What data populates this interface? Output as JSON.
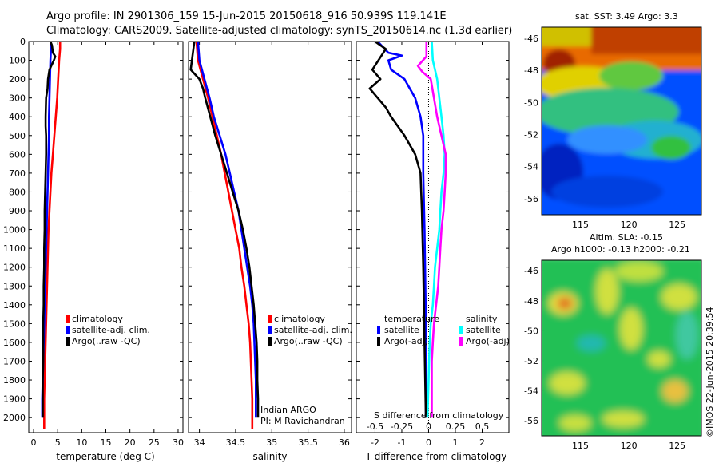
{
  "title": {
    "line1": "Argo profile: IN 2901306_159 15-Jun-2015 20150618_916 50.939S 119.141E",
    "line2": "Climatology: CARS2009. Satellite-adjusted climatology: synTS_20150614.nc (1.3d earlier)"
  },
  "colors": {
    "climatology": "#ff0000",
    "satellite_adj": "#0000ff",
    "argo": "#000000",
    "satellite_salinity": "#00ffff",
    "argo_salinity": "#ff00ff"
  },
  "legend": {
    "climatology": "climatology",
    "satellite_adj": "satellite-adj. clim.",
    "argo": "Argo(..raw -QC)",
    "temperature_head": "temperature",
    "salinity_head": "salinity",
    "satellite": "satellite",
    "argo_adj": "Argo(-adj)"
  },
  "annotations": {
    "indian_argo": "Indian ARGO",
    "pi": "PI: M Ravichandran",
    "s_diff_label": "S difference from climatology",
    "maps_top_label": "sat. SST: 3.49 Argo: 3.3",
    "altim_line1": "Altim. SLA: -0.15",
    "altim_line2": "Argo h1000: -0.13 h2000: -0.21",
    "imos_stamp": "©IMOS 22-Jun-2015 20:39:54"
  },
  "chart_data": [
    {
      "type": "line",
      "panel": "temperature",
      "xlabel": "temperature (deg C)",
      "ylabel": "",
      "xlim": [
        -1,
        31
      ],
      "ylim": [
        2080,
        0
      ],
      "y_inverted": true,
      "xticks": [
        0,
        5,
        10,
        15,
        20,
        25,
        30
      ],
      "yticks": [
        0,
        100,
        200,
        300,
        400,
        500,
        600,
        700,
        800,
        900,
        1000,
        1100,
        1200,
        1300,
        1400,
        1500,
        1600,
        1700,
        1800,
        1900,
        2000
      ],
      "series": [
        {
          "name": "climatology",
          "color": "#ff0000",
          "points": [
            [
              5.5,
              0
            ],
            [
              5.5,
              40
            ],
            [
              5.3,
              100
            ],
            [
              5.1,
              200
            ],
            [
              4.9,
              300
            ],
            [
              4.6,
              400
            ],
            [
              4.3,
              500
            ],
            [
              4.0,
              600
            ],
            [
              3.7,
              700
            ],
            [
              3.5,
              800
            ],
            [
              3.3,
              900
            ],
            [
              3.1,
              1000
            ],
            [
              3.0,
              1100
            ],
            [
              2.9,
              1200
            ],
            [
              2.8,
              1300
            ],
            [
              2.7,
              1400
            ],
            [
              2.6,
              1500
            ],
            [
              2.5,
              1600
            ],
            [
              2.4,
              1700
            ],
            [
              2.3,
              1800
            ],
            [
              2.2,
              1900
            ],
            [
              2.2,
              2000
            ],
            [
              2.2,
              2060
            ]
          ]
        },
        {
          "name": "satellite-adj. clim.",
          "color": "#0000ff",
          "points": [
            [
              3.6,
              0
            ],
            [
              3.6,
              50
            ],
            [
              3.5,
              100
            ],
            [
              3.4,
              200
            ],
            [
              3.3,
              300
            ],
            [
              3.2,
              400
            ],
            [
              3.2,
              500
            ],
            [
              3.1,
              600
            ],
            [
              3.0,
              700
            ],
            [
              2.9,
              800
            ],
            [
              2.8,
              900
            ],
            [
              2.7,
              1000
            ],
            [
              2.6,
              1100
            ],
            [
              2.5,
              1200
            ],
            [
              2.4,
              1300
            ],
            [
              2.3,
              1400
            ],
            [
              2.2,
              1500
            ],
            [
              2.1,
              1600
            ],
            [
              2.0,
              1700
            ],
            [
              1.9,
              1800
            ],
            [
              1.8,
              1900
            ],
            [
              1.8,
              2000
            ]
          ]
        },
        {
          "name": "Argo(..raw -QC)",
          "color": "#000000",
          "points": [
            [
              3.5,
              0
            ],
            [
              3.8,
              20
            ],
            [
              4.0,
              60
            ],
            [
              4.5,
              80
            ],
            [
              4.2,
              100
            ],
            [
              3.3,
              150
            ],
            [
              3.0,
              200
            ],
            [
              2.9,
              250
            ],
            [
              2.6,
              300
            ],
            [
              2.5,
              400
            ],
            [
              2.5,
              450
            ],
            [
              2.6,
              500
            ],
            [
              2.6,
              600
            ],
            [
              2.5,
              700
            ],
            [
              2.4,
              800
            ],
            [
              2.3,
              900
            ],
            [
              2.3,
              1000
            ],
            [
              2.2,
              1100
            ],
            [
              2.2,
              1200
            ],
            [
              2.1,
              1300
            ],
            [
              2.1,
              1400
            ],
            [
              2.0,
              1500
            ],
            [
              2.0,
              1600
            ],
            [
              2.0,
              1700
            ],
            [
              1.9,
              1800
            ],
            [
              1.9,
              1900
            ],
            [
              1.9,
              2000
            ]
          ]
        }
      ]
    },
    {
      "type": "line",
      "panel": "salinity",
      "xlabel": "salinity",
      "ylabel": "",
      "xlim": [
        33.85,
        36.1
      ],
      "ylim": [
        2080,
        0
      ],
      "y_inverted": true,
      "xticks": [
        34,
        34.5,
        35,
        35.5,
        36
      ],
      "xticklabels": [
        "34",
        "34.5",
        "35",
        "35.5",
        "36"
      ],
      "series": [
        {
          "name": "climatology",
          "color": "#ff0000",
          "points": [
            [
              33.96,
              0
            ],
            [
              33.98,
              100
            ],
            [
              34.05,
              200
            ],
            [
              34.12,
              300
            ],
            [
              34.18,
              400
            ],
            [
              34.24,
              500
            ],
            [
              34.3,
              600
            ],
            [
              34.35,
              700
            ],
            [
              34.4,
              800
            ],
            [
              34.45,
              900
            ],
            [
              34.5,
              1000
            ],
            [
              34.55,
              1100
            ],
            [
              34.58,
              1200
            ],
            [
              34.62,
              1300
            ],
            [
              34.65,
              1400
            ],
            [
              34.68,
              1500
            ],
            [
              34.7,
              1600
            ],
            [
              34.71,
              1700
            ],
            [
              34.72,
              1800
            ],
            [
              34.73,
              1900
            ],
            [
              34.73,
              2000
            ],
            [
              34.73,
              2060
            ]
          ]
        },
        {
          "name": "satellite-adj. clim.",
          "color": "#0000ff",
          "points": [
            [
              33.98,
              0
            ],
            [
              34.0,
              100
            ],
            [
              34.07,
              200
            ],
            [
              34.14,
              300
            ],
            [
              34.2,
              400
            ],
            [
              34.28,
              500
            ],
            [
              34.36,
              600
            ],
            [
              34.42,
              700
            ],
            [
              34.48,
              800
            ],
            [
              34.54,
              900
            ],
            [
              34.58,
              1000
            ],
            [
              34.62,
              1100
            ],
            [
              34.66,
              1200
            ],
            [
              34.7,
              1300
            ],
            [
              34.73,
              1400
            ],
            [
              34.75,
              1500
            ],
            [
              34.76,
              1600
            ],
            [
              34.77,
              1700
            ],
            [
              34.78,
              1800
            ],
            [
              34.78,
              1900
            ],
            [
              34.78,
              2000
            ]
          ]
        },
        {
          "name": "Argo(..raw -QC)",
          "color": "#000000",
          "points": [
            [
              33.93,
              0
            ],
            [
              33.88,
              150
            ],
            [
              34.0,
              200
            ],
            [
              34.05,
              250
            ],
            [
              34.08,
              300
            ],
            [
              34.15,
              400
            ],
            [
              34.22,
              500
            ],
            [
              34.3,
              600
            ],
            [
              34.38,
              700
            ],
            [
              34.46,
              800
            ],
            [
              34.54,
              900
            ],
            [
              34.6,
              1000
            ],
            [
              34.65,
              1100
            ],
            [
              34.69,
              1200
            ],
            [
              34.72,
              1300
            ],
            [
              34.75,
              1400
            ],
            [
              34.77,
              1500
            ],
            [
              34.79,
              1600
            ],
            [
              34.8,
              1700
            ],
            [
              34.8,
              1800
            ],
            [
              34.81,
              1900
            ],
            [
              34.81,
              2000
            ]
          ]
        }
      ]
    },
    {
      "type": "line",
      "panel": "difference",
      "xlabel": "T difference from climatology",
      "ylabel": "",
      "xlim": [
        -2.7,
        3.0
      ],
      "ylim": [
        2080,
        0
      ],
      "y_inverted": true,
      "xticks": [
        -2,
        -1,
        0,
        1,
        2
      ],
      "secondary_x_label": "S difference from climatology",
      "secondary_xticks": [
        -0.5,
        -0.25,
        0,
        0.25,
        0.5
      ],
      "secondary_xticklabels": [
        "-0.5",
        "-0.25",
        "0",
        "0.25",
        "0.5"
      ],
      "series": [
        {
          "name": "temperature satellite",
          "color": "#0000ff",
          "points": [
            [
              -1.9,
              0
            ],
            [
              -1.5,
              60
            ],
            [
              -1.0,
              75
            ],
            [
              -1.5,
              100
            ],
            [
              -1.4,
              150
            ],
            [
              -0.9,
              200
            ],
            [
              -0.5,
              300
            ],
            [
              -0.3,
              400
            ],
            [
              -0.2,
              500
            ],
            [
              -0.2,
              700
            ],
            [
              -0.15,
              1000
            ],
            [
              -0.1,
              1500
            ],
            [
              -0.1,
              2000
            ]
          ]
        },
        {
          "name": "temperature Argo(-adj)",
          "color": "#000000",
          "points": [
            [
              -2.0,
              0
            ],
            [
              -1.6,
              40
            ],
            [
              -2.1,
              150
            ],
            [
              -1.8,
              200
            ],
            [
              -2.2,
              250
            ],
            [
              -1.9,
              300
            ],
            [
              -1.6,
              350
            ],
            [
              -1.4,
              400
            ],
            [
              -0.9,
              500
            ],
            [
              -0.5,
              600
            ],
            [
              -0.3,
              700
            ],
            [
              -0.25,
              900
            ],
            [
              -0.2,
              1200
            ],
            [
              -0.15,
              1600
            ],
            [
              -0.1,
              2000
            ]
          ]
        },
        {
          "name": "salinity satellite",
          "color": "#00ffff",
          "points": [
            [
              0.03,
              0
            ],
            [
              0.04,
              100
            ],
            [
              0.08,
              200
            ],
            [
              0.1,
              300
            ],
            [
              0.12,
              400
            ],
            [
              0.14,
              500
            ],
            [
              0.15,
              600
            ],
            [
              0.14,
              700
            ],
            [
              0.12,
              800
            ],
            [
              0.11,
              900
            ],
            [
              0.1,
              1000
            ],
            [
              0.08,
              1100
            ],
            [
              0.06,
              1200
            ],
            [
              0.05,
              1300
            ],
            [
              0.04,
              1400
            ],
            [
              0.02,
              1500
            ],
            [
              0.01,
              1600
            ],
            [
              0.0,
              1800
            ],
            [
              -0.01,
              2000
            ]
          ]
        },
        {
          "name": "salinity Argo(-adj)",
          "color": "#ff00ff",
          "points": [
            [
              -0.02,
              0
            ],
            [
              -0.02,
              80
            ],
            [
              -0.1,
              130
            ],
            [
              -0.06,
              160
            ],
            [
              0.02,
              200
            ],
            [
              0.05,
              300
            ],
            [
              0.08,
              400
            ],
            [
              0.12,
              500
            ],
            [
              0.16,
              600
            ],
            [
              0.16,
              700
            ],
            [
              0.15,
              800
            ],
            [
              0.14,
              900
            ],
            [
              0.12,
              1000
            ],
            [
              0.11,
              1100
            ],
            [
              0.1,
              1200
            ],
            [
              0.09,
              1300
            ],
            [
              0.07,
              1400
            ],
            [
              0.05,
              1500
            ],
            [
              0.04,
              1600
            ],
            [
              0.03,
              1700
            ],
            [
              0.03,
              1800
            ],
            [
              0.03,
              1900
            ],
            [
              0.03,
              2000
            ]
          ]
        }
      ]
    },
    {
      "type": "heatmap",
      "panel": "sst-map",
      "title": "sat. SST: 3.49 Argo: 3.3",
      "xticks": [
        115,
        120,
        125
      ],
      "yticks": [
        -46,
        -48,
        -50,
        -52,
        -54,
        -56
      ],
      "xlim": [
        111,
        127.5
      ],
      "ylim": [
        -45.3,
        -57
      ]
    },
    {
      "type": "heatmap",
      "panel": "sla-map",
      "title": "Altim. SLA: -0.15",
      "subtitle": "Argo h1000: -0.13 h2000: -0.21",
      "xticks": [
        115,
        120,
        125
      ],
      "yticks": [
        -46,
        -48,
        -50,
        -52,
        -54,
        -56
      ],
      "xlim": [
        111,
        127.5
      ],
      "ylim": [
        -45.3,
        -57
      ]
    }
  ]
}
